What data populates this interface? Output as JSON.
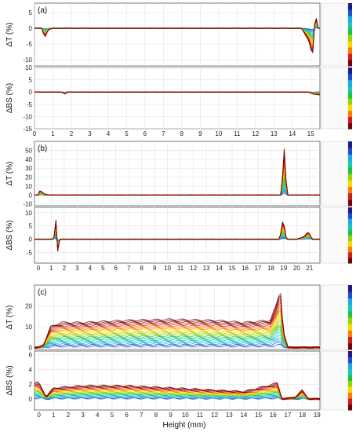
{
  "figure": {
    "x_axis_label": "Height (mm)"
  },
  "chart_data": [
    {
      "type": "line",
      "panel_label": "(a)",
      "xlim": [
        0,
        15.5
      ],
      "xticks": [
        0,
        1,
        2,
        3,
        4,
        5,
        6,
        7,
        8,
        9,
        10,
        11,
        12,
        13,
        14,
        15
      ],
      "colorscale": [
        "#7a0000",
        "#cc1e1e",
        "#ff7a00",
        "#ffd800",
        "#9ad400",
        "#17c44a",
        "#18c9b4",
        "#1fa8e6",
        "#1a4fd1",
        "#1a1a8f"
      ],
      "subplots": [
        {
          "ylabel": "ΔT (%)",
          "ylim": [
            -12,
            8
          ],
          "yticks": [
            5,
            0,
            -5,
            -10
          ],
          "profile": [
            [
              0,
              0
            ],
            [
              0.4,
              0
            ],
            [
              0.55,
              -3
            ],
            [
              0.75,
              -0.5
            ],
            [
              1,
              0
            ],
            [
              14.5,
              0
            ],
            [
              14.9,
              -4
            ],
            [
              15.1,
              -9
            ],
            [
              15.25,
              5
            ],
            [
              15.4,
              0
            ],
            [
              15.5,
              0
            ]
          ]
        },
        {
          "ylabel": "ΔBS (%)",
          "ylim": [
            -15,
            10
          ],
          "yticks": [
            10,
            5,
            0,
            -5,
            -10,
            -15
          ],
          "profile": [
            [
              0,
              0
            ],
            [
              1.5,
              0
            ],
            [
              1.65,
              -0.8
            ],
            [
              1.8,
              0
            ],
            [
              14.9,
              0
            ],
            [
              15.2,
              -1
            ],
            [
              15.5,
              -1.2
            ]
          ]
        }
      ]
    },
    {
      "type": "line",
      "panel_label": "(b)",
      "xlim": [
        -0.3,
        21.8
      ],
      "xticks": [
        0,
        1,
        2,
        3,
        4,
        5,
        6,
        7,
        8,
        9,
        10,
        11,
        12,
        13,
        14,
        15,
        16,
        17,
        18,
        19,
        20,
        21
      ],
      "colorscale": [
        "#7a0000",
        "#cc1e1e",
        "#ff7a00",
        "#ffd800",
        "#9ad400",
        "#17c44a",
        "#18c9b4",
        "#1fa8e6",
        "#1a4fd1",
        "#1a1a8f"
      ],
      "subplots": [
        {
          "ylabel": "ΔT (%)",
          "ylim": [
            -12,
            60
          ],
          "yticks": [
            50,
            40,
            30,
            20,
            10,
            0,
            -10
          ],
          "profile": [
            [
              0,
              0
            ],
            [
              0.15,
              6
            ],
            [
              0.3,
              3
            ],
            [
              0.5,
              1
            ],
            [
              0.8,
              0
            ],
            [
              18.8,
              0
            ],
            [
              18.95,
              30
            ],
            [
              19.05,
              55
            ],
            [
              19.15,
              20
            ],
            [
              19.3,
              0
            ],
            [
              21.5,
              0
            ]
          ]
        },
        {
          "ylabel": "ΔBS (%)",
          "ylim": [
            -9,
            12
          ],
          "yticks": [
            10,
            5,
            0,
            -5
          ],
          "profile": [
            [
              0,
              0
            ],
            [
              1.2,
              0
            ],
            [
              1.35,
              8
            ],
            [
              1.5,
              -5
            ],
            [
              1.65,
              0
            ],
            [
              18.7,
              0
            ],
            [
              18.95,
              8
            ],
            [
              19.2,
              0
            ],
            [
              20,
              0
            ],
            [
              20.6,
              1
            ],
            [
              20.9,
              3
            ],
            [
              21.2,
              0
            ],
            [
              21.5,
              0
            ]
          ]
        }
      ]
    },
    {
      "type": "line",
      "panel_label": "(c)",
      "xlim": [
        -0.3,
        19.2
      ],
      "xticks": [
        0,
        1,
        2,
        3,
        4,
        5,
        6,
        7,
        8,
        9,
        10,
        11,
        12,
        13,
        14,
        15,
        16,
        17,
        18,
        19
      ],
      "colorscale": [
        "#7a0000",
        "#cc1e1e",
        "#ff7a00",
        "#ffd800",
        "#9ad400",
        "#17c44a",
        "#18c9b4",
        "#1fa8e6",
        "#1a4fd1",
        "#1a1a8f"
      ],
      "subplots": [
        {
          "ylabel": "ΔT (%)",
          "ylim": [
            -1,
            30
          ],
          "yticks": [
            20,
            10,
            0
          ],
          "profile": [
            [
              0,
              0
            ],
            [
              0.3,
              1
            ],
            [
              0.8,
              10
            ],
            [
              1.5,
              12
            ],
            [
              3,
              12
            ],
            [
              6,
              13
            ],
            [
              9,
              13.5
            ],
            [
              12,
              13
            ],
            [
              14,
              12
            ],
            [
              15.8,
              13
            ],
            [
              16.2,
              20
            ],
            [
              16.5,
              28
            ],
            [
              16.7,
              8
            ],
            [
              17,
              0
            ],
            [
              19,
              0
            ]
          ]
        },
        {
          "ylabel": "ΔBS (%)",
          "ylim": [
            -1.5,
            6.5
          ],
          "yticks": [
            6,
            4,
            2,
            0
          ],
          "profile": [
            [
              0,
              2.2
            ],
            [
              0.5,
              0.3
            ],
            [
              1,
              1.5
            ],
            [
              3,
              1.8
            ],
            [
              6,
              1.8
            ],
            [
              9,
              1.5
            ],
            [
              12,
              1.2
            ],
            [
              14,
              1.0
            ],
            [
              16,
              2.0
            ],
            [
              16.3,
              2.2
            ],
            [
              16.6,
              0
            ],
            [
              17.5,
              0.2
            ],
            [
              18,
              1.2
            ],
            [
              18.4,
              0
            ],
            [
              18.7,
              0
            ]
          ]
        }
      ]
    }
  ]
}
